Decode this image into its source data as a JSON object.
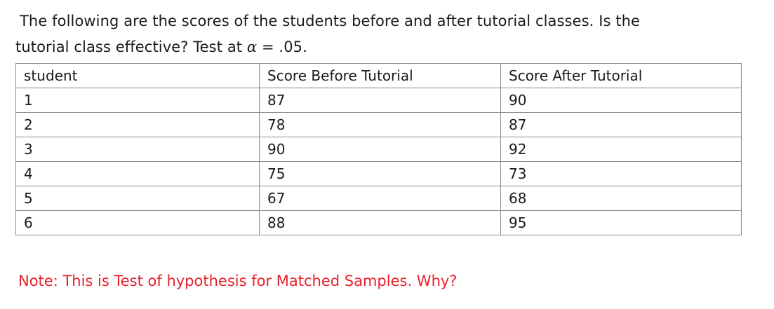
{
  "question": {
    "line1": "The following are the scores of the students before and after tutorial classes. Is the",
    "line2_prefix": "tutorial class effective? Test at ",
    "alpha_symbol": "α",
    "alpha_equals": " = .05."
  },
  "table": {
    "headers": [
      "student",
      "Score Before Tutorial",
      "Score After Tutorial"
    ],
    "rows": [
      [
        "1",
        "87",
        "90"
      ],
      [
        "2",
        "78",
        "87"
      ],
      [
        "3",
        "90",
        "92"
      ],
      [
        "4",
        "75",
        "73"
      ],
      [
        "5",
        "67",
        "68"
      ],
      [
        "6",
        "88",
        "95"
      ]
    ]
  },
  "note": {
    "text": "Note: This is Test of hypothesis for Matched Samples. Why?",
    "color": "#e8212b"
  }
}
